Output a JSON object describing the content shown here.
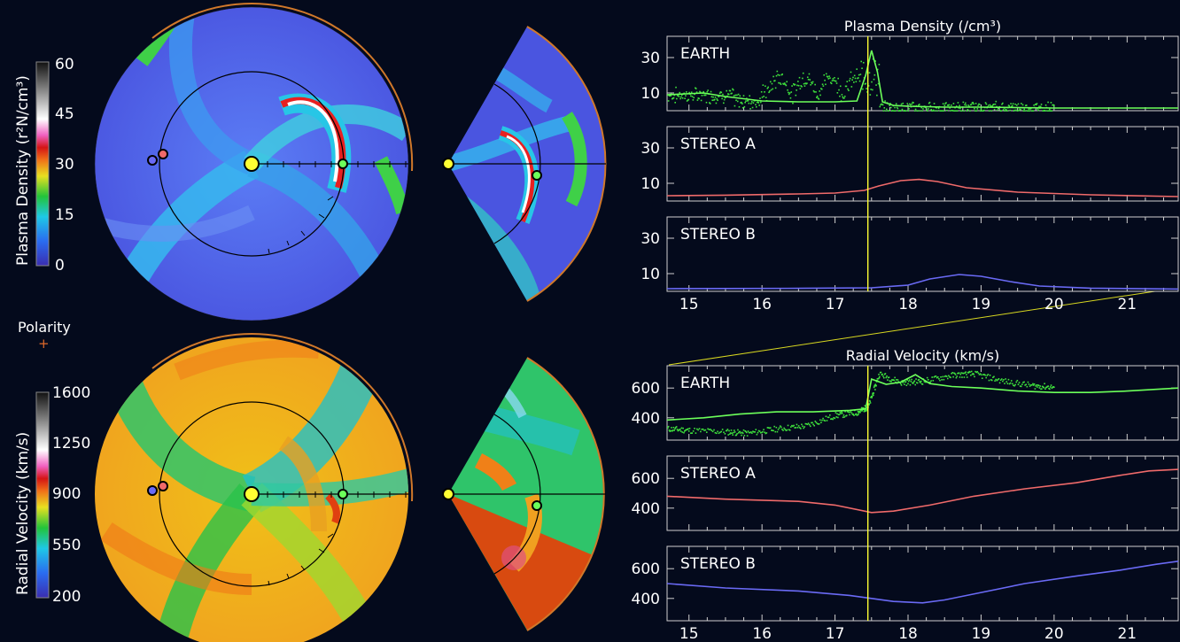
{
  "polarity_label": "Polarity",
  "density_colorbar": {
    "title": "Plasma Density (r²N/cm³)",
    "ticks": [
      "60",
      "45",
      "30",
      "15",
      "0"
    ]
  },
  "velocity_colorbar": {
    "title": "Radial Velocity (km/s)",
    "ticks": [
      "1600",
      "1250",
      "900",
      "550",
      "200"
    ]
  },
  "colors": {
    "earth": "#6cff5a",
    "earth_obs": "#3fe33c",
    "stereo_a": "#f06a6a",
    "stereo_b": "#6a6af5",
    "marker": "#ffff33",
    "border": "#d0782a"
  },
  "chart_data": [
    {
      "type": "line",
      "title": "Plasma Density (/cm³)",
      "x_ticks": [
        "15",
        "16",
        "17",
        "18",
        "19",
        "20",
        "21"
      ],
      "xlim": [
        14.7,
        21.7
      ],
      "marker_x": 17.45,
      "panels": [
        {
          "name": "EARTH",
          "ylim": [
            0,
            42
          ],
          "y_ticks": [
            "30",
            "10"
          ],
          "color": "#6cff5a",
          "x": [
            14.7,
            15.2,
            15.5,
            16.0,
            16.5,
            17.0,
            17.3,
            17.42,
            17.5,
            17.58,
            17.65,
            17.8,
            18.0,
            18.5,
            19.0,
            20.0,
            21.0,
            21.7
          ],
          "y": [
            9,
            10,
            8,
            5.5,
            5,
            5,
            5.5,
            20,
            34,
            22,
            5,
            3,
            2.5,
            2,
            2,
            1.5,
            1.5,
            1.5
          ],
          "obs_range": [
            14.7,
            20.0
          ]
        },
        {
          "name": "STEREO A",
          "ylim": [
            0,
            42
          ],
          "y_ticks": [
            "30",
            "10"
          ],
          "color": "#f06a6a",
          "x": [
            14.7,
            15.5,
            16.5,
            17.0,
            17.4,
            17.6,
            17.9,
            18.15,
            18.4,
            18.8,
            19.5,
            20.5,
            21.7
          ],
          "y": [
            3,
            3.3,
            4,
            4.5,
            6,
            8.5,
            11.5,
            12.2,
            11,
            7.5,
            5,
            3.5,
            2.5
          ]
        },
        {
          "name": "STEREO B",
          "ylim": [
            0,
            42
          ],
          "y_ticks": [
            "30",
            "10"
          ],
          "color": "#6a6af5",
          "x": [
            14.7,
            15.5,
            16.5,
            17.5,
            18.0,
            18.3,
            18.7,
            19.0,
            19.4,
            19.8,
            20.5,
            21.7
          ],
          "y": [
            1.5,
            1.6,
            1.7,
            2,
            3.5,
            7,
            9.5,
            8.5,
            5.5,
            3,
            1.8,
            1.3
          ]
        }
      ]
    },
    {
      "type": "line",
      "title": "Radial Velocity (km/s)",
      "x_ticks": [
        "15",
        "16",
        "17",
        "18",
        "19",
        "20",
        "21"
      ],
      "xlim": [
        14.7,
        21.7
      ],
      "marker_x": 17.45,
      "panels": [
        {
          "name": "EARTH",
          "ylim": [
            250,
            750
          ],
          "y_ticks": [
            "600",
            "400"
          ],
          "color": "#6cff5a",
          "x": [
            14.7,
            15.2,
            15.7,
            16.2,
            16.7,
            17.2,
            17.42,
            17.5,
            17.7,
            17.9,
            18.1,
            18.3,
            18.6,
            19.0,
            19.5,
            20.0,
            20.5,
            21.0,
            21.7
          ],
          "y": [
            385,
            400,
            425,
            440,
            440,
            450,
            460,
            660,
            625,
            640,
            690,
            630,
            610,
            600,
            580,
            570,
            570,
            580,
            600
          ],
          "obs_x": [
            14.7,
            15.0,
            15.5,
            15.8,
            16.2,
            16.6,
            17.0,
            17.3,
            17.45,
            17.6,
            17.9,
            18.2,
            18.6,
            18.9,
            19.3,
            19.7,
            20.0
          ],
          "obs_y": [
            330,
            320,
            310,
            300,
            330,
            350,
            420,
            440,
            480,
            700,
            640,
            650,
            690,
            700,
            650,
            620,
            610
          ]
        },
        {
          "name": "STEREO A",
          "ylim": [
            250,
            750
          ],
          "y_ticks": [
            "600",
            "400"
          ],
          "color": "#f06a6a",
          "x": [
            14.7,
            15.5,
            16.5,
            17.0,
            17.5,
            17.8,
            18.3,
            18.9,
            19.6,
            20.3,
            20.9,
            21.3,
            21.7
          ],
          "y": [
            480,
            460,
            445,
            420,
            370,
            380,
            420,
            480,
            530,
            570,
            620,
            650,
            660
          ]
        },
        {
          "name": "STEREO B",
          "ylim": [
            250,
            750
          ],
          "y_ticks": [
            "600",
            "400"
          ],
          "color": "#6a6af5",
          "x": [
            14.7,
            15.5,
            16.5,
            17.2,
            17.8,
            18.2,
            18.5,
            19.0,
            19.6,
            20.3,
            20.9,
            21.4,
            21.7
          ],
          "y": [
            500,
            470,
            450,
            420,
            380,
            370,
            390,
            440,
            500,
            550,
            590,
            630,
            650
          ]
        }
      ]
    }
  ]
}
